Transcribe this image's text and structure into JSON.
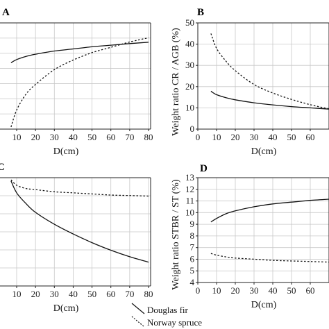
{
  "chart_data": [
    {
      "panel": "A",
      "type": "line",
      "xlabel": "D(cm)",
      "ylabel": "",
      "xlim": [
        7,
        80
      ],
      "x_ticks": [
        "10",
        "20",
        "30",
        "40",
        "50",
        "60",
        "70",
        "80"
      ],
      "grid": true,
      "series": [
        {
          "name": "Douglas fir",
          "style": "solid",
          "x": [
            7,
            10,
            15,
            20,
            30,
            40,
            50,
            60,
            70,
            80
          ],
          "y_frac": [
            0.625,
            0.655,
            0.685,
            0.705,
            0.735,
            0.755,
            0.775,
            0.79,
            0.805,
            0.818
          ]
        },
        {
          "name": "Norway spruce",
          "style": "dashed",
          "x": [
            7,
            10,
            15,
            20,
            30,
            40,
            50,
            60,
            70,
            80
          ],
          "y_frac": [
            0.02,
            0.18,
            0.33,
            0.42,
            0.56,
            0.65,
            0.72,
            0.77,
            0.82,
            0.86
          ]
        }
      ]
    },
    {
      "panel": "B",
      "type": "line",
      "xlabel": "D(cm)",
      "ylabel": "Weight ratio CR / AGB (%)",
      "xlim": [
        0,
        70
      ],
      "ylim": [
        0,
        50
      ],
      "x_ticks": [
        "0",
        "10",
        "20",
        "30",
        "40",
        "50",
        "60"
      ],
      "y_ticks": [
        "0",
        "10",
        "20",
        "30",
        "40",
        "50"
      ],
      "grid": true,
      "series": [
        {
          "name": "Douglas fir",
          "style": "solid",
          "x": [
            7,
            10,
            15,
            20,
            30,
            40,
            50,
            60,
            70
          ],
          "y": [
            17.8,
            16.2,
            14.8,
            13.8,
            12.4,
            11.4,
            10.6,
            10.0,
            9.4
          ]
        },
        {
          "name": "Norway spruce",
          "style": "dashed",
          "x": [
            7,
            10,
            15,
            20,
            30,
            40,
            50,
            60,
            70
          ],
          "y": [
            45,
            38,
            32,
            27.5,
            21,
            17,
            14,
            11.5,
            9.5
          ]
        }
      ]
    },
    {
      "panel": "C",
      "type": "line",
      "xlabel": "D(cm)",
      "ylabel": "",
      "xlim": [
        7,
        80
      ],
      "x_ticks": [
        "10",
        "20",
        "30",
        "40",
        "50",
        "60",
        "70",
        "80"
      ],
      "grid": true,
      "series": [
        {
          "name": "Douglas fir",
          "style": "solid",
          "x": [
            7,
            10,
            15,
            20,
            30,
            40,
            50,
            60,
            70,
            80
          ],
          "y_frac": [
            0.97,
            0.86,
            0.76,
            0.68,
            0.57,
            0.48,
            0.4,
            0.33,
            0.27,
            0.22
          ]
        },
        {
          "name": "Norway spruce",
          "style": "dashed",
          "x": [
            7,
            10,
            15,
            20,
            30,
            40,
            50,
            60,
            70,
            80
          ],
          "y_frac": [
            0.98,
            0.93,
            0.9,
            0.89,
            0.87,
            0.86,
            0.85,
            0.84,
            0.835,
            0.83
          ]
        }
      ]
    },
    {
      "panel": "D",
      "type": "line",
      "xlabel": "D(cm)",
      "ylabel": "Weight ratio STBR / ST (%)",
      "xlim": [
        0,
        70
      ],
      "ylim": [
        4,
        13
      ],
      "x_ticks": [
        "0",
        "10",
        "20",
        "30",
        "40",
        "50",
        "60"
      ],
      "y_ticks": [
        "4",
        "5",
        "6",
        "7",
        "8",
        "9",
        "10",
        "11",
        "12",
        "13"
      ],
      "grid": true,
      "series": [
        {
          "name": "Douglas fir",
          "style": "solid",
          "x": [
            7,
            10,
            15,
            20,
            30,
            40,
            50,
            60,
            70
          ],
          "y": [
            9.2,
            9.5,
            9.9,
            10.15,
            10.5,
            10.75,
            10.9,
            11.05,
            11.15
          ]
        },
        {
          "name": "Norway spruce",
          "style": "dashed",
          "x": [
            7,
            10,
            15,
            20,
            30,
            40,
            50,
            60,
            70
          ],
          "y": [
            6.5,
            6.35,
            6.2,
            6.1,
            6.0,
            5.9,
            5.85,
            5.8,
            5.75
          ]
        }
      ]
    }
  ],
  "legend": {
    "douglas": "Douglas fir",
    "spruce": "Norway spruce"
  }
}
